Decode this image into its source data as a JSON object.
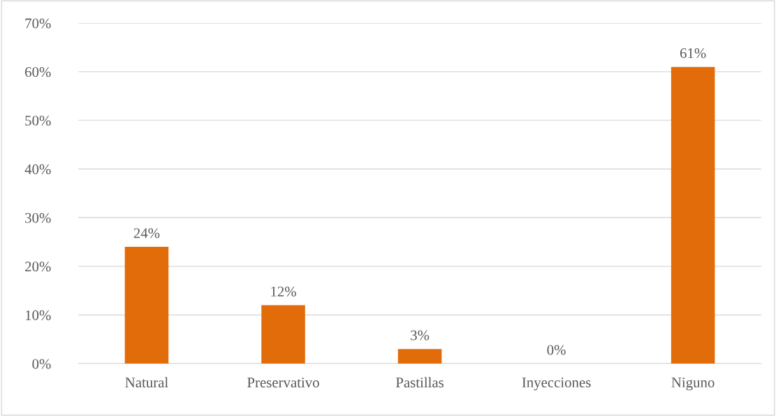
{
  "chart_data": {
    "type": "bar",
    "categories": [
      "Natural",
      "Preservativo",
      "Pastillas",
      "Inyecciones",
      "Niguno"
    ],
    "values": [
      24,
      12,
      3,
      0,
      61
    ],
    "color": "#e36c0a",
    "ylim": [
      0,
      70
    ],
    "yticks": [
      {
        "value": 0,
        "label": "0%"
      },
      {
        "value": 10,
        "label": "10%"
      },
      {
        "value": 20,
        "label": "20%"
      },
      {
        "value": 30,
        "label": "30%"
      },
      {
        "value": 40,
        "label": "40%"
      },
      {
        "value": 50,
        "label": "50%"
      },
      {
        "value": 60,
        "label": "60%"
      },
      {
        "value": 70,
        "label": "70%"
      }
    ],
    "value_labels": [
      "24%",
      "12%",
      "3%",
      "0%",
      "61%"
    ],
    "grid": "y",
    "legend": false
  }
}
